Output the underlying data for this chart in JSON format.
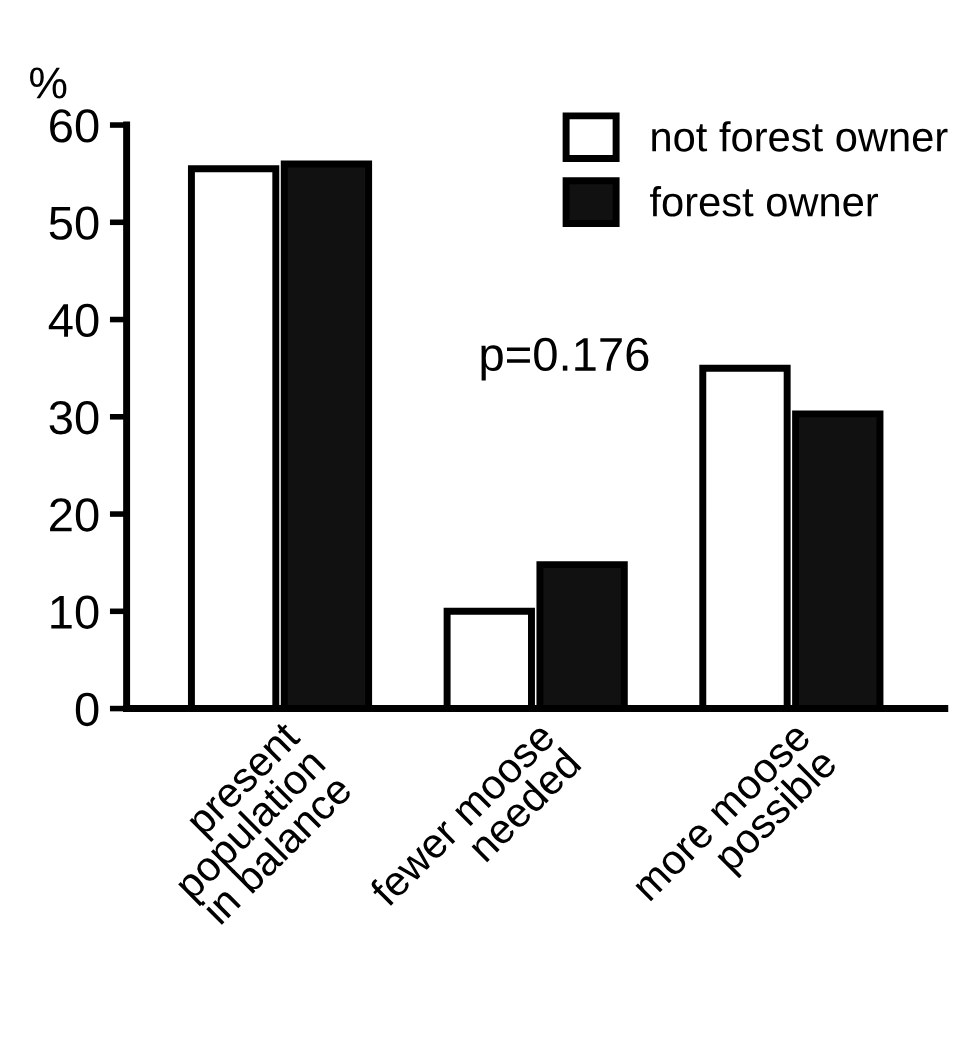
{
  "chart_data": {
    "type": "bar",
    "ylabel": "%",
    "categories": [
      "present\npopulation\nin balance",
      "fewer moose\nneeded",
      "more moose\npossible"
    ],
    "series": [
      {
        "name": "not forest owner",
        "color": "#ffffff",
        "values": [
          55.5,
          10,
          35
        ]
      },
      {
        "name": "forest owner",
        "color": "#111111",
        "values": [
          56,
          14.8,
          30.3
        ]
      }
    ],
    "ylim": [
      0,
      60
    ],
    "yticks": [
      0,
      10,
      20,
      30,
      40,
      50,
      60
    ],
    "annotations": [
      "p=0.176"
    ],
    "legend": "top right",
    "grid": false
  }
}
